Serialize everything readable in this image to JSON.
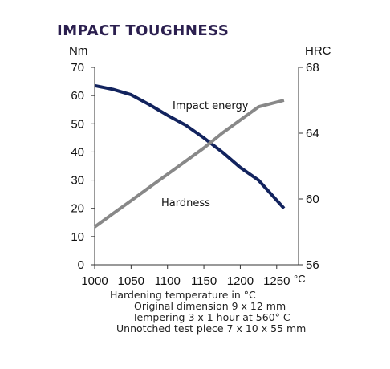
{
  "title": "IMPACT TOUGHNESS",
  "chart_data": {
    "type": "line",
    "title": "IMPACT TOUGHNESS",
    "xlabel": "Hardening temperature in °C",
    "x_ticks": [
      "1000",
      "1050",
      "1100",
      "1150",
      "1200",
      "1250"
    ],
    "x_tick_suffix": "°C",
    "xlim": [
      1000,
      1280
    ],
    "y_left": {
      "label": "Nm",
      "ylim": [
        0,
        70
      ],
      "ticks": [
        "0",
        "10",
        "20",
        "30",
        "40",
        "50",
        "60",
        "70"
      ]
    },
    "y_right": {
      "label": "HRC",
      "ylim": [
        56,
        68
      ],
      "ticks": [
        "56",
        "60",
        "64",
        "68"
      ]
    },
    "grid": false,
    "series": [
      {
        "name": "Impact energy",
        "axis": "left",
        "color": "#12235e",
        "x": [
          1000,
          1025,
          1050,
          1075,
          1100,
          1125,
          1150,
          1175,
          1200,
          1225,
          1260
        ],
        "y": [
          63.5,
          62.2,
          60.3,
          56.8,
          53.0,
          49.5,
          45.0,
          40.0,
          34.5,
          30.0,
          20.0
        ]
      },
      {
        "name": "Hardness",
        "axis": "right",
        "color": "#888888",
        "x": [
          1000,
          1025,
          1050,
          1075,
          1100,
          1125,
          1150,
          1175,
          1200,
          1225,
          1260
        ],
        "y": [
          58.3,
          59.1,
          59.9,
          60.7,
          61.5,
          62.3,
          63.1,
          64.0,
          64.8,
          65.6,
          66.0
        ]
      }
    ]
  },
  "footnotes": [
    "Hardening temperature in °C",
    "Original dimension 9 x 12 mm",
    "Tempering 3 x 1 hour at 560° C",
    "Unnotched test piece 7 x 10 x 55 mm"
  ]
}
